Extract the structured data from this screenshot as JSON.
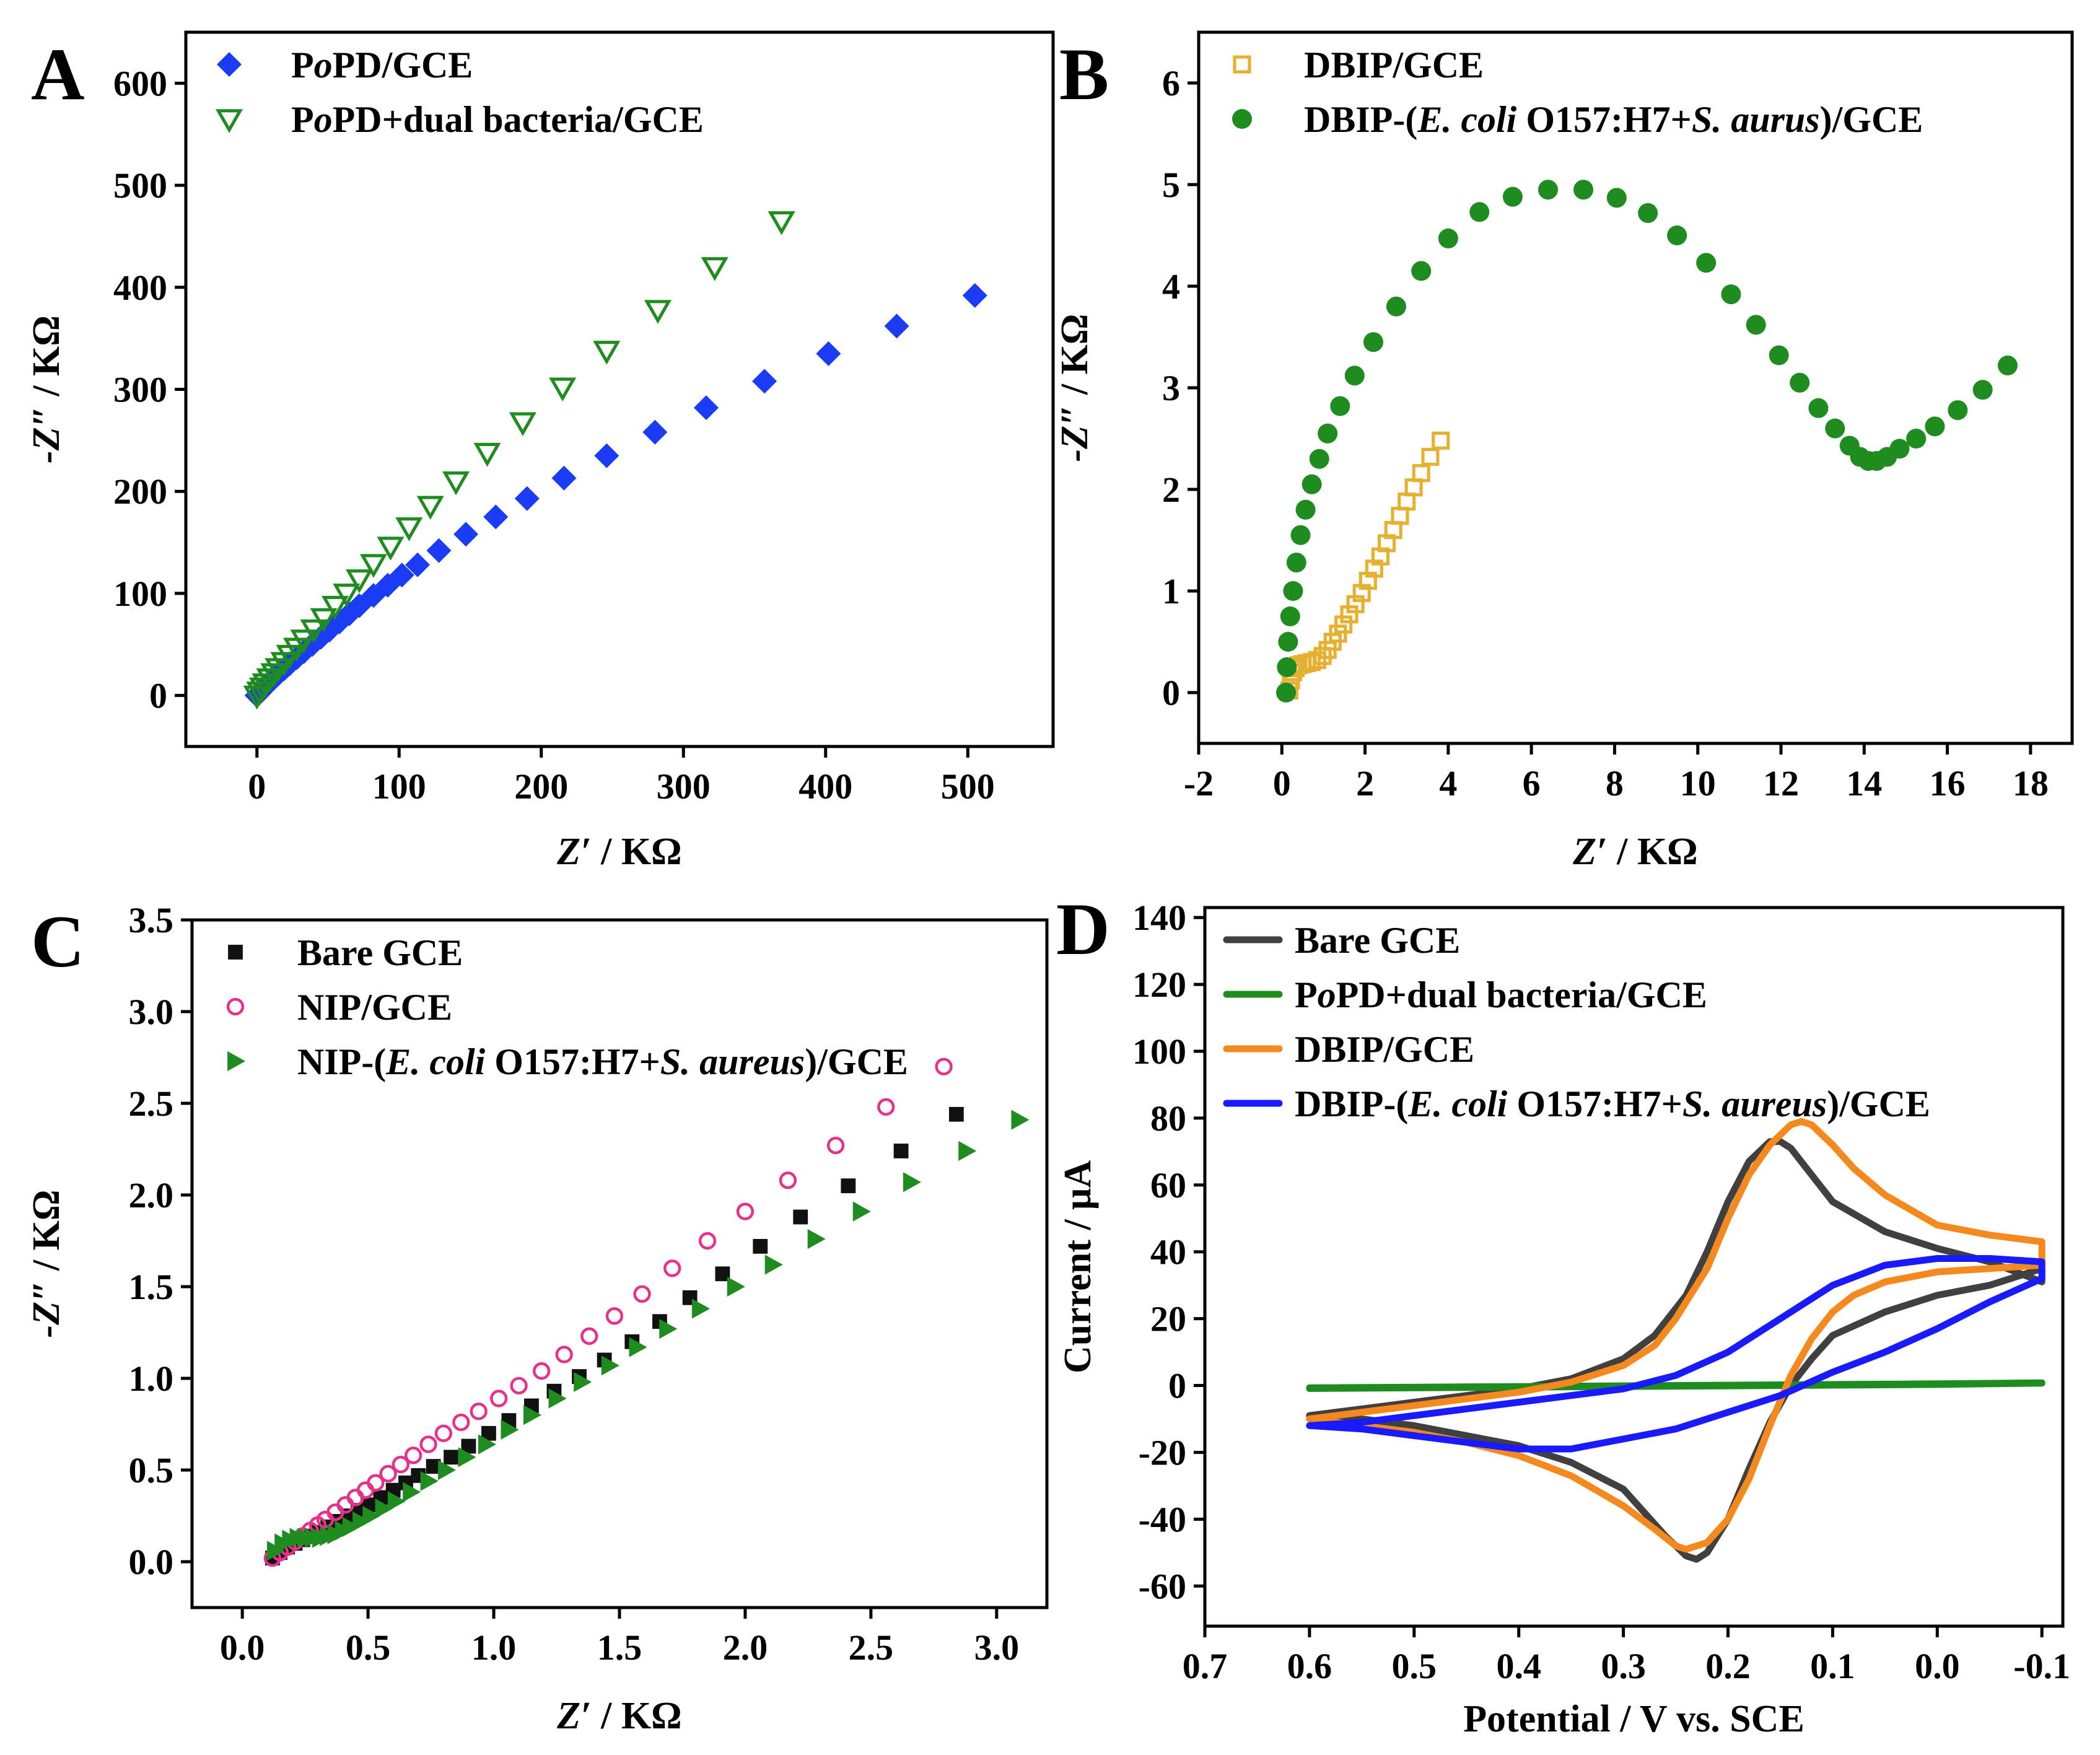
{
  "figure": {
    "panel_letters": [
      "A",
      "B",
      "C",
      "D"
    ]
  },
  "chart_data": [
    {
      "panel": "A",
      "type": "scatter",
      "xlabel": "Z′ / KΩ",
      "ylabel": "-Z″ / KΩ",
      "xlabel_italic": "Z′",
      "xlabel_unit": " / KΩ",
      "ylabel_italic": "-Z″",
      "ylabel_unit": " / KΩ",
      "xlim": [
        -50,
        560
      ],
      "ylim": [
        -50,
        650
      ],
      "xticks": [
        0,
        100,
        200,
        300,
        400,
        500
      ],
      "yticks": [
        0,
        100,
        200,
        300,
        400,
        500,
        600
      ],
      "legend_position": "top-left",
      "series": [
        {
          "name": "PoPD/GCE",
          "name_parts": [
            "P",
            "o",
            "PD/GCE"
          ],
          "marker": "diamond",
          "color": "#1a3cf5",
          "filled": true,
          "x": [
            0,
            2,
            4,
            6,
            9,
            12,
            15,
            19,
            23,
            28,
            33,
            39,
            45,
            51,
            58,
            65,
            72,
            82,
            92,
            102,
            113,
            128,
            147,
            168,
            190,
            216,
            246,
            280,
            316,
            357,
            402,
            450,
            505
          ],
          "y": [
            0,
            3,
            6,
            9,
            13,
            17,
            21,
            26,
            31,
            37,
            43,
            50,
            57,
            64,
            72,
            80,
            88,
            98,
            108,
            118,
            128,
            142,
            158,
            175,
            193,
            213,
            235,
            258,
            282,
            308,
            335,
            362,
            392
          ]
        },
        {
          "name": "PoPD+dual bacteria/GCE",
          "name_parts": [
            "P",
            "o",
            "PD+dual bacteria/GCE"
          ],
          "marker": "triangle-down",
          "color": "#1e8c1e",
          "filled": false,
          "x": [
            0,
            2,
            4,
            6,
            9,
            12,
            15,
            19,
            23,
            28,
            33,
            40,
            47,
            55,
            63,
            72,
            82,
            94,
            107,
            122,
            140,
            162,
            187,
            215,
            246,
            282,
            322,
            369
          ],
          "y": [
            0,
            4,
            8,
            12,
            17,
            22,
            27,
            33,
            40,
            47,
            55,
            65,
            76,
            88,
            100,
            114,
            129,
            146,
            165,
            186,
            210,
            238,
            268,
            302,
            338,
            378,
            420,
            465
          ]
        }
      ]
    },
    {
      "panel": "B",
      "type": "scatter",
      "xlabel": "Z′ / KΩ",
      "ylabel": "-Z″ / KΩ",
      "xlabel_italic": "Z′",
      "xlabel_unit": " / KΩ",
      "ylabel_italic": "-Z″",
      "ylabel_unit": " / KΩ",
      "xlim": [
        -2,
        19
      ],
      "ylim": [
        -0.5,
        6.5
      ],
      "xticks": [
        -2,
        0,
        2,
        4,
        6,
        8,
        10,
        12,
        14,
        16,
        18
      ],
      "yticks": [
        0,
        1,
        2,
        3,
        4,
        5,
        6
      ],
      "legend_position": "top-left",
      "series": [
        {
          "name": "DBIP/GCE",
          "name_parts": [
            "DBIP/GCE"
          ],
          "marker": "square",
          "color": "#e6b030",
          "filled": false,
          "x": [
            0.18,
            0.22,
            0.27,
            0.33,
            0.4,
            0.5,
            0.6,
            0.72,
            0.85,
            0.98,
            1.1,
            1.22,
            1.35,
            1.48,
            1.62,
            1.77,
            1.92,
            2.07,
            2.22,
            2.37,
            2.52,
            2.68,
            2.84,
            3.0,
            3.17,
            3.35,
            3.57,
            3.82
          ],
          "y": [
            0.02,
            0.12,
            0.2,
            0.24,
            0.27,
            0.28,
            0.29,
            0.3,
            0.32,
            0.36,
            0.42,
            0.5,
            0.58,
            0.67,
            0.77,
            0.87,
            0.98,
            1.1,
            1.22,
            1.34,
            1.47,
            1.6,
            1.74,
            1.88,
            2.02,
            2.16,
            2.32,
            2.48
          ]
        },
        {
          "name": "DBIP-(E. coli O157:H7+S. aurus)/GCE",
          "name_parts": [
            "DBIP-(",
            "E. coli",
            " O157:H7+",
            "S. aurus",
            ")/GCE"
          ],
          "marker": "circle",
          "color": "#1e8c1e",
          "filled": true,
          "x": [
            0.1,
            0.12,
            0.15,
            0.2,
            0.27,
            0.35,
            0.45,
            0.57,
            0.72,
            0.9,
            1.1,
            1.4,
            1.75,
            2.2,
            2.75,
            3.35,
            4.0,
            4.75,
            5.55,
            6.4,
            7.25,
            8.05,
            8.8,
            9.5,
            10.2,
            10.8,
            11.4,
            11.95,
            12.45,
            12.9,
            13.3,
            13.65,
            13.9,
            14.1,
            14.3,
            14.55,
            14.85,
            15.25,
            15.7,
            16.25,
            16.85,
            17.45
          ],
          "y": [
            0.0,
            0.25,
            0.5,
            0.75,
            1.0,
            1.28,
            1.55,
            1.8,
            2.05,
            2.3,
            2.55,
            2.82,
            3.12,
            3.45,
            3.8,
            4.15,
            4.47,
            4.73,
            4.88,
            4.95,
            4.95,
            4.87,
            4.72,
            4.5,
            4.23,
            3.92,
            3.62,
            3.32,
            3.05,
            2.8,
            2.6,
            2.43,
            2.32,
            2.28,
            2.28,
            2.32,
            2.4,
            2.5,
            2.62,
            2.78,
            2.98,
            3.22
          ]
        }
      ]
    },
    {
      "panel": "C",
      "type": "scatter",
      "xlabel": "Z′ / KΩ",
      "ylabel": "-Z″ / KΩ",
      "xlabel_italic": "Z′",
      "xlabel_unit": " / KΩ",
      "ylabel_italic": "-Z″",
      "ylabel_unit": " / KΩ",
      "xlim": [
        -0.2,
        3.2
      ],
      "ylim": [
        -0.25,
        3.5
      ],
      "xticks": [
        0.0,
        0.5,
        1.0,
        1.5,
        2.0,
        2.5,
        3.0
      ],
      "xtick_labels": [
        "0.0",
        "0.5",
        "1.0",
        "1.5",
        "2.0",
        "2.5",
        "3.0"
      ],
      "yticks": [
        0.0,
        0.5,
        1.0,
        1.5,
        2.0,
        2.5,
        3.0,
        3.5
      ],
      "ytick_labels": [
        "0.0",
        "0.5",
        "1.0",
        "1.5",
        "2.0",
        "2.5",
        "3.0",
        "3.5"
      ],
      "legend_position": "top-left",
      "series": [
        {
          "name": "Bare GCE",
          "name_parts": [
            "Bare GCE"
          ],
          "marker": "square",
          "color": "#111111",
          "filled": true,
          "x": [
            0.12,
            0.15,
            0.18,
            0.21,
            0.24,
            0.27,
            0.3,
            0.34,
            0.38,
            0.42,
            0.46,
            0.5,
            0.55,
            0.6,
            0.65,
            0.7,
            0.76,
            0.83,
            0.9,
            0.98,
            1.06,
            1.15,
            1.24,
            1.34,
            1.44,
            1.55,
            1.66,
            1.78,
            1.91,
            2.06,
            2.22,
            2.41,
            2.62,
            2.84
          ],
          "y": [
            0.02,
            0.05,
            0.08,
            0.1,
            0.12,
            0.14,
            0.16,
            0.19,
            0.22,
            0.25,
            0.28,
            0.31,
            0.35,
            0.39,
            0.43,
            0.47,
            0.52,
            0.57,
            0.63,
            0.7,
            0.77,
            0.85,
            0.93,
            1.01,
            1.1,
            1.2,
            1.31,
            1.44,
            1.57,
            1.72,
            1.88,
            2.05,
            2.24,
            2.44
          ]
        },
        {
          "name": "NIP/GCE",
          "name_parts": [
            "NIP/GCE"
          ],
          "marker": "circle",
          "color": "#e8308a",
          "filled": false,
          "x": [
            0.12,
            0.15,
            0.18,
            0.21,
            0.24,
            0.27,
            0.3,
            0.33,
            0.37,
            0.41,
            0.45,
            0.49,
            0.53,
            0.58,
            0.63,
            0.68,
            0.74,
            0.8,
            0.87,
            0.94,
            1.02,
            1.1,
            1.19,
            1.28,
            1.38,
            1.48,
            1.59,
            1.71,
            1.85,
            2.0,
            2.17,
            2.36,
            2.56,
            2.79
          ],
          "y": [
            0.02,
            0.05,
            0.08,
            0.11,
            0.14,
            0.17,
            0.2,
            0.23,
            0.27,
            0.31,
            0.35,
            0.39,
            0.43,
            0.48,
            0.53,
            0.58,
            0.64,
            0.7,
            0.76,
            0.82,
            0.89,
            0.96,
            1.04,
            1.13,
            1.23,
            1.34,
            1.46,
            1.6,
            1.75,
            1.91,
            2.08,
            2.27,
            2.48,
            2.7
          ]
        },
        {
          "name": "NIP-(E. coli O157:H7+S. aureus)/GCE",
          "name_parts": [
            "NIP-(",
            "E. coli",
            " O157:H7+",
            "S. aureus",
            ")/GCE"
          ],
          "marker": "triangle-right",
          "color": "#1e8c1e",
          "filled": true,
          "x": [
            0.13,
            0.16,
            0.19,
            0.22,
            0.25,
            0.28,
            0.31,
            0.34,
            0.37,
            0.4,
            0.43,
            0.47,
            0.51,
            0.56,
            0.61,
            0.67,
            0.74,
            0.81,
            0.89,
            0.97,
            1.06,
            1.15,
            1.25,
            1.35,
            1.46,
            1.57,
            1.69,
            1.82,
            1.96,
            2.11,
            2.28,
            2.46,
            2.66,
            2.88,
            3.09
          ],
          "y": [
            0.06,
            0.1,
            0.12,
            0.13,
            0.13,
            0.13,
            0.13,
            0.14,
            0.15,
            0.17,
            0.19,
            0.22,
            0.25,
            0.29,
            0.33,
            0.38,
            0.44,
            0.5,
            0.57,
            0.64,
            0.72,
            0.8,
            0.89,
            0.98,
            1.07,
            1.17,
            1.27,
            1.38,
            1.5,
            1.62,
            1.76,
            1.91,
            2.07,
            2.24,
            2.41
          ]
        }
      ]
    },
    {
      "panel": "D",
      "type": "line",
      "xlabel": "Potential / V vs. SCE",
      "ylabel": "Current / μA",
      "xlim": [
        0.7,
        -0.12
      ],
      "ylim": [
        -72,
        143
      ],
      "xticks": [
        0.7,
        0.6,
        0.5,
        0.4,
        0.3,
        0.2,
        0.1,
        0.0,
        -0.1
      ],
      "xtick_labels": [
        "0.7",
        "0.6",
        "0.5",
        "0.4",
        "0.3",
        "0.2",
        "0.1",
        "0.0",
        "-0.1"
      ],
      "yticks": [
        -60,
        -40,
        -20,
        0,
        20,
        40,
        60,
        80,
        100,
        120,
        140
      ],
      "legend_position": "top-left",
      "series": [
        {
          "name": "Bare GCE",
          "name_parts": [
            "Bare GCE"
          ],
          "color": "#404040",
          "x": [
            0.6,
            0.55,
            0.5,
            0.45,
            0.4,
            0.35,
            0.3,
            0.27,
            0.24,
            0.22,
            0.2,
            0.18,
            0.16,
            0.15,
            0.14,
            0.12,
            0.1,
            0.05,
            0.0,
            -0.05,
            -0.1,
            -0.1,
            -0.05,
            0.0,
            0.05,
            0.1,
            0.12,
            0.14,
            0.16,
            0.18,
            0.2,
            0.22,
            0.23,
            0.24,
            0.26,
            0.28,
            0.3,
            0.35,
            0.4,
            0.45,
            0.5,
            0.55,
            0.6
          ],
          "y": [
            -9,
            -7,
            -5,
            -3,
            -1,
            2,
            8,
            15,
            27,
            40,
            55,
            67,
            73,
            73,
            71,
            63,
            55,
            46,
            41,
            37,
            31,
            35,
            30,
            27,
            22,
            15,
            8,
            0,
            -11,
            -25,
            -40,
            -50,
            -52,
            -51,
            -45,
            -38,
            -31,
            -23,
            -18,
            -15,
            -12,
            -10,
            -9
          ]
        },
        {
          "name": "PoPD+dual bacteria/GCE",
          "name_parts": [
            "P",
            "o",
            "PD+dual bacteria/GCE"
          ],
          "color": "#1e8c1e",
          "x": [
            0.6,
            0.4,
            0.2,
            0.0,
            -0.1,
            -0.1,
            0.0,
            0.2,
            0.4,
            0.6
          ],
          "y": [
            -0.7,
            -0.3,
            0.1,
            0.5,
            0.8,
            0.7,
            0.3,
            -0.1,
            -0.5,
            -0.9
          ]
        },
        {
          "name": "DBIP/GCE",
          "name_parts": [
            "DBIP/GCE"
          ],
          "color": "#f5891e",
          "x": [
            0.6,
            0.55,
            0.5,
            0.45,
            0.4,
            0.35,
            0.3,
            0.27,
            0.25,
            0.22,
            0.2,
            0.18,
            0.16,
            0.14,
            0.13,
            0.12,
            0.1,
            0.08,
            0.05,
            0.0,
            -0.05,
            -0.1,
            -0.1,
            -0.05,
            0.0,
            0.05,
            0.08,
            0.1,
            0.12,
            0.14,
            0.16,
            0.18,
            0.2,
            0.22,
            0.24,
            0.25,
            0.27,
            0.3,
            0.35,
            0.4,
            0.45,
            0.5,
            0.55,
            0.6
          ],
          "y": [
            -10,
            -8,
            -6,
            -4,
            -2,
            1,
            6,
            12,
            20,
            35,
            50,
            63,
            72,
            78,
            79,
            78,
            72,
            65,
            57,
            48,
            45,
            43,
            36,
            35,
            34,
            31,
            27,
            22,
            14,
            3,
            -12,
            -28,
            -40,
            -47,
            -49,
            -48,
            -43,
            -36,
            -27,
            -21,
            -17,
            -14,
            -12,
            -10
          ]
        },
        {
          "name": "DBIP-(E. coli O157:H7+S. aureus)/GCE",
          "name_parts": [
            "DBIP-(",
            "E. coli",
            " O157:H7+",
            "S. aureus",
            ")/GCE"
          ],
          "color": "#1a1aff",
          "x": [
            0.6,
            0.55,
            0.5,
            0.45,
            0.4,
            0.35,
            0.3,
            0.25,
            0.2,
            0.15,
            0.1,
            0.05,
            0.0,
            -0.05,
            -0.1,
            -0.1,
            -0.05,
            0.0,
            0.05,
            0.1,
            0.15,
            0.2,
            0.25,
            0.3,
            0.35,
            0.38,
            0.4,
            0.45,
            0.5,
            0.55,
            0.6
          ],
          "y": [
            -12,
            -11,
            -9,
            -7,
            -5,
            -3,
            -1,
            3,
            10,
            20,
            30,
            36,
            38,
            38,
            37,
            32,
            25,
            17,
            10,
            4,
            -3,
            -8,
            -13,
            -16,
            -19,
            -19,
            -19,
            -17,
            -15,
            -13,
            -12
          ]
        }
      ]
    }
  ]
}
